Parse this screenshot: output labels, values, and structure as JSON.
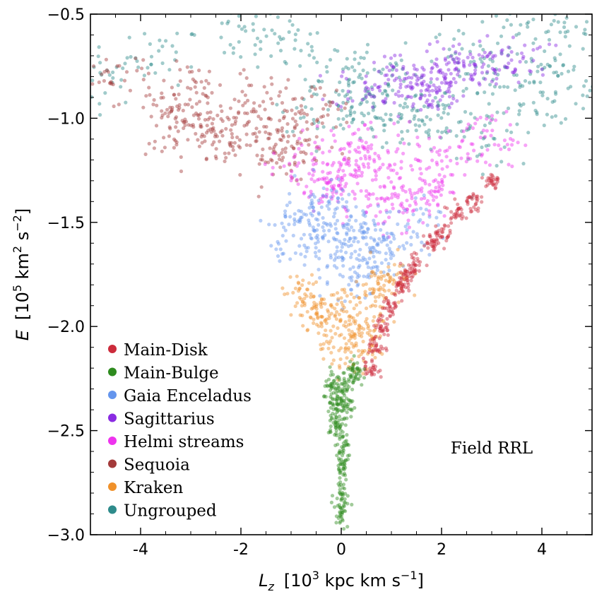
{
  "chart_data": {
    "type": "scatter",
    "title": "",
    "annotation": "Field RRL",
    "xlabel": {
      "main": "L",
      "sub": "z",
      "units": "[10",
      "exp": "3",
      "units2": " kpc km s",
      "exp2": "−1",
      "close": "]"
    },
    "ylabel": {
      "main": "E",
      "units": "[10",
      "exp": "5",
      "units2": " km",
      "exp2": "2",
      "units3": " s",
      "exp3": "−2",
      "close": "]"
    },
    "xlim": [
      -5,
      5
    ],
    "ylim": [
      -3.0,
      -0.5
    ],
    "xticks": [
      -4,
      -2,
      0,
      2,
      4
    ],
    "xtick_labels": [
      "-4",
      "-2",
      "0",
      "2",
      "4"
    ],
    "yticks": [
      -3.0,
      -2.5,
      -2.0,
      -1.5,
      -1.0,
      -0.5
    ],
    "ytick_labels": [
      "−3.0",
      "−2.5",
      "−2.0",
      "−1.5",
      "−1.0",
      "−0.5"
    ],
    "grid": false,
    "legend_position": "lower-left",
    "series": [
      {
        "name": "Ungrouped",
        "color": "#2e8b8b",
        "approx_points": [
          [
            -4.7,
            -0.8
          ],
          [
            -3.5,
            -0.7
          ],
          [
            -2.0,
            -0.6
          ],
          [
            -1.0,
            -0.65
          ],
          [
            0.0,
            -0.75
          ],
          [
            0.5,
            -0.9
          ],
          [
            1.0,
            -0.8
          ],
          [
            1.5,
            -0.95
          ],
          [
            2.0,
            -1.0
          ],
          [
            2.5,
            -0.7
          ],
          [
            3.0,
            -0.85
          ],
          [
            3.5,
            -0.6
          ],
          [
            4.0,
            -0.75
          ],
          [
            4.5,
            -0.55
          ],
          [
            4.8,
            -0.9
          ],
          [
            0.3,
            -0.98
          ],
          [
            1.2,
            -1.02
          ],
          [
            -0.5,
            -0.92
          ],
          [
            2.8,
            -1.1
          ],
          [
            3.8,
            -0.95
          ]
        ]
      },
      {
        "name": "Sagittarius",
        "color": "#8a2be2",
        "approx_points": [
          [
            1.0,
            -0.78
          ],
          [
            1.5,
            -0.85
          ],
          [
            2.0,
            -0.8
          ],
          [
            2.5,
            -0.75
          ],
          [
            3.0,
            -0.78
          ],
          [
            0.5,
            -0.85
          ],
          [
            1.8,
            -0.9
          ],
          [
            2.2,
            -0.72
          ],
          [
            3.5,
            -0.7
          ],
          [
            1.3,
            -0.88
          ]
        ]
      },
      {
        "name": "Sequoia",
        "color": "#a33a3a",
        "approx_points": [
          [
            -3.5,
            -0.95
          ],
          [
            -3.0,
            -1.0
          ],
          [
            -2.5,
            -1.05
          ],
          [
            -2.0,
            -1.0
          ],
          [
            -1.5,
            -1.1
          ],
          [
            -1.0,
            -1.0
          ],
          [
            -0.5,
            -0.95
          ],
          [
            -2.8,
            -0.85
          ],
          [
            -2.2,
            -1.15
          ],
          [
            -1.8,
            -0.9
          ],
          [
            -1.2,
            -1.2
          ],
          [
            -4.5,
            -0.8
          ],
          [
            -3.2,
            -1.1
          ],
          [
            -0.8,
            -1.15
          ]
        ]
      },
      {
        "name": "Helmi streams",
        "color": "#ee33ee",
        "approx_points": [
          [
            0.0,
            -1.3
          ],
          [
            0.2,
            -1.25
          ],
          [
            -0.2,
            -1.35
          ],
          [
            0.5,
            -1.2
          ],
          [
            1.0,
            -1.3
          ],
          [
            1.5,
            -1.2
          ],
          [
            2.0,
            -1.25
          ],
          [
            -0.5,
            -1.3
          ],
          [
            0.8,
            -1.4
          ],
          [
            1.2,
            -1.45
          ],
          [
            2.5,
            -1.15
          ],
          [
            -0.8,
            -1.2
          ],
          [
            0.3,
            -1.15
          ],
          [
            1.8,
            -1.35
          ],
          [
            3.0,
            -1.1
          ]
        ]
      },
      {
        "name": "Gaia Enceladus",
        "color": "#6495ed",
        "approx_points": [
          [
            0.0,
            -1.55
          ],
          [
            -0.3,
            -1.6
          ],
          [
            0.3,
            -1.5
          ],
          [
            0.0,
            -1.7
          ],
          [
            -0.5,
            -1.5
          ],
          [
            0.5,
            -1.65
          ],
          [
            0.8,
            -1.6
          ],
          [
            -0.8,
            -1.45
          ],
          [
            1.0,
            -1.55
          ],
          [
            -0.2,
            -1.4
          ],
          [
            0.4,
            -1.75
          ],
          [
            1.5,
            -1.5
          ],
          [
            -1.0,
            -1.6
          ]
        ]
      },
      {
        "name": "Main-Disk",
        "color": "#cc2b3b",
        "approx_points": [
          [
            0.6,
            -2.2
          ],
          [
            0.8,
            -2.0
          ],
          [
            1.0,
            -1.9
          ],
          [
            1.2,
            -1.8
          ],
          [
            1.5,
            -1.7
          ],
          [
            1.8,
            -1.6
          ],
          [
            2.0,
            -1.55
          ],
          [
            2.3,
            -1.45
          ],
          [
            2.6,
            -1.4
          ],
          [
            3.0,
            -1.3
          ],
          [
            0.7,
            -2.1
          ],
          [
            1.3,
            -1.75
          ]
        ]
      },
      {
        "name": "Kraken",
        "color": "#f0912a",
        "approx_points": [
          [
            0.0,
            -1.9
          ],
          [
            0.2,
            -2.0
          ],
          [
            -0.2,
            -2.05
          ],
          [
            0.4,
            -2.1
          ],
          [
            -0.4,
            -1.95
          ],
          [
            0.6,
            -1.85
          ],
          [
            0.8,
            -1.8
          ],
          [
            -0.6,
            -1.9
          ],
          [
            0.1,
            -2.15
          ],
          [
            0.5,
            -2.0
          ],
          [
            -0.8,
            -1.85
          ],
          [
            1.0,
            -1.75
          ]
        ]
      },
      {
        "name": "Main-Bulge",
        "color": "#2e8b1e",
        "approx_points": [
          [
            0.0,
            -2.3
          ],
          [
            0.1,
            -2.4
          ],
          [
            -0.1,
            -2.35
          ],
          [
            0.2,
            -2.25
          ],
          [
            -0.2,
            -2.3
          ],
          [
            0.0,
            -2.5
          ],
          [
            0.05,
            -2.6
          ],
          [
            0.0,
            -2.7
          ],
          [
            0.3,
            -2.22
          ],
          [
            -0.15,
            -2.45
          ],
          [
            0.0,
            -2.8
          ],
          [
            0.0,
            -2.88
          ]
        ]
      }
    ],
    "legend_order": [
      "Main-Disk",
      "Main-Bulge",
      "Gaia Enceladus",
      "Sagittarius",
      "Helmi streams",
      "Sequoia",
      "Kraken",
      "Ungrouped"
    ]
  }
}
